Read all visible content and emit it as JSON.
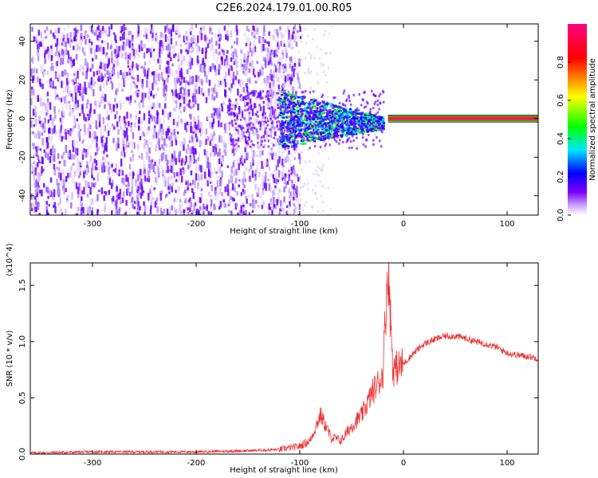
{
  "figure": {
    "title": "C2E6.2024.179.01.00.R05"
  },
  "chart_data": [
    {
      "type": "heatmap",
      "title": "C2E6.2024.179.01.00.R05",
      "xlabel": "Height of straight line (km)",
      "ylabel": "Frequency (Hz)",
      "xlim": [
        -360,
        130
      ],
      "ylim": [
        -50,
        49
      ],
      "x_ticks": [
        -300,
        -200,
        -100,
        0,
        100
      ],
      "y_ticks": [
        -40,
        -20,
        0,
        20,
        40
      ],
      "colorbar": {
        "label": "Normalized spectral amplitude",
        "range": [
          0,
          1
        ],
        "ticks": [
          "0.0",
          "0.2",
          "0.4",
          "0.6",
          "0.8"
        ],
        "colormap": [
          "#ffffff",
          "#7d00ff",
          "#0000ff",
          "#00e6ff",
          "#00ff00",
          "#ffff00",
          "#ff0000",
          "#ff0080"
        ]
      },
      "regions": [
        {
          "x": [
            -360,
            -120
          ],
          "description_level": "noise",
          "amp": 0.15
        },
        {
          "x": [
            -120,
            -20
          ],
          "center_freq": 0,
          "amp": 0.45
        },
        {
          "x": [
            -20,
            130
          ],
          "center_freq": 0,
          "amp": 0.95
        }
      ]
    },
    {
      "type": "line",
      "xlabel": "Height of straight line (km)",
      "ylabel": "SNR (10 * v/v)",
      "y_multiplier": "(x10^4)",
      "xlim": [
        -360,
        130
      ],
      "ylim": [
        0,
        1.7
      ],
      "x_ticks": [
        -300,
        -200,
        -100,
        0,
        100
      ],
      "y_ticks": [
        0.0,
        0.5,
        1.0,
        1.5
      ],
      "series": [
        {
          "color": "#ee3333",
          "x": [
            -360,
            -300,
            -250,
            -200,
            -150,
            -120,
            -100,
            -90,
            -80,
            -70,
            -60,
            -50,
            -40,
            -30,
            -20,
            -15,
            -10,
            0,
            10,
            20,
            30,
            40,
            50,
            60,
            70,
            80,
            90,
            100,
            110,
            120,
            130
          ],
          "y": [
            0.01,
            0.02,
            0.02,
            0.02,
            0.03,
            0.04,
            0.07,
            0.12,
            0.35,
            0.15,
            0.12,
            0.25,
            0.35,
            0.55,
            0.7,
            1.7,
            0.75,
            0.8,
            0.9,
            0.98,
            1.02,
            1.05,
            1.05,
            1.03,
            1.0,
            0.98,
            0.95,
            0.9,
            0.88,
            0.87,
            0.85
          ]
        }
      ]
    }
  ]
}
